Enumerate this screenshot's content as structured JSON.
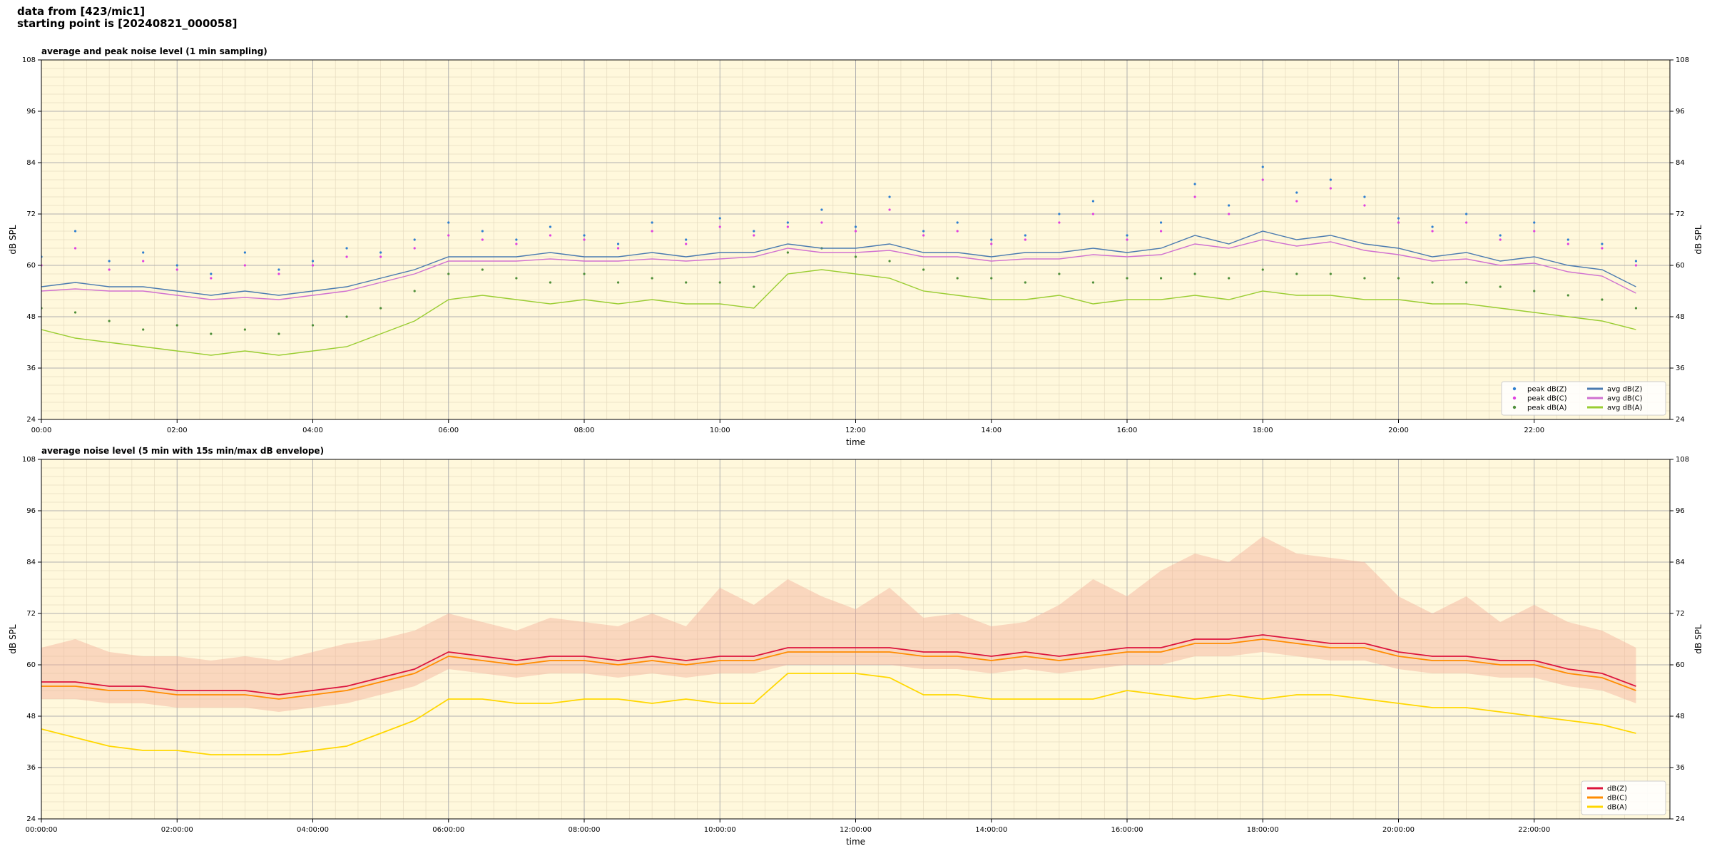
{
  "header": {
    "line1": "data from [423/mic1]",
    "line2": "starting point is [20240821_000058]"
  },
  "chart_data": [
    {
      "type": "line",
      "title": "average and peak noise level (1 min sampling)",
      "xlabel": "time",
      "ylabel": "dB SPL",
      "xlim": [
        0,
        24
      ],
      "ylim": [
        24,
        108
      ],
      "grid": true,
      "legend": "lower right",
      "background": "#fff8dc",
      "xticks": [
        {
          "value": 0,
          "label": "00:00"
        },
        {
          "value": 2,
          "label": "02:00"
        },
        {
          "value": 4,
          "label": "04:00"
        },
        {
          "value": 6,
          "label": "06:00"
        },
        {
          "value": 8,
          "label": "08:00"
        },
        {
          "value": 10,
          "label": "10:00"
        },
        {
          "value": 12,
          "label": "12:00"
        },
        {
          "value": 14,
          "label": "14:00"
        },
        {
          "value": 16,
          "label": "16:00"
        },
        {
          "value": 18,
          "label": "18:00"
        },
        {
          "value": 20,
          "label": "20:00"
        },
        {
          "value": 22,
          "label": "22:00"
        }
      ],
      "yticks": [
        24,
        36,
        48,
        60,
        72,
        84,
        96,
        108
      ],
      "x": [
        0,
        0.5,
        1,
        1.5,
        2,
        2.5,
        3,
        3.5,
        4,
        4.5,
        5,
        5.5,
        6,
        6.5,
        7,
        7.5,
        8,
        8.5,
        9,
        9.5,
        10,
        10.5,
        11,
        11.5,
        12,
        12.5,
        13,
        13.5,
        14,
        14.5,
        15,
        15.5,
        16,
        16.5,
        17,
        17.5,
        18,
        18.5,
        19,
        19.5,
        20,
        20.5,
        21,
        21.5,
        22,
        22.5,
        23,
        23.5
      ],
      "series": [
        {
          "name": "peak dB(Z)",
          "kind": "scatter",
          "color": "#2f7fd0",
          "values": [
            62,
            68,
            61,
            63,
            60,
            58,
            63,
            59,
            61,
            64,
            63,
            66,
            70,
            68,
            66,
            69,
            67,
            65,
            70,
            66,
            71,
            68,
            70,
            73,
            69,
            76,
            68,
            70,
            66,
            67,
            72,
            75,
            67,
            70,
            79,
            74,
            83,
            77,
            80,
            76,
            71,
            69,
            72,
            67,
            70,
            66,
            65,
            61
          ]
        },
        {
          "name": "peak dB(C)",
          "kind": "scatter",
          "color": "#e040e0",
          "values": [
            60,
            64,
            59,
            61,
            59,
            57,
            60,
            58,
            60,
            62,
            62,
            64,
            67,
            66,
            65,
            67,
            66,
            64,
            68,
            65,
            69,
            67,
            69,
            70,
            68,
            73,
            67,
            68,
            65,
            66,
            70,
            72,
            66,
            68,
            76,
            72,
            80,
            75,
            78,
            74,
            70,
            68,
            70,
            66,
            68,
            65,
            64,
            60
          ]
        },
        {
          "name": "peak dB(A)",
          "kind": "scatter",
          "color": "#4f8f3a",
          "values": [
            50,
            49,
            47,
            45,
            46,
            44,
            45,
            44,
            46,
            48,
            50,
            54,
            58,
            59,
            57,
            56,
            58,
            56,
            57,
            56,
            56,
            55,
            63,
            64,
            62,
            61,
            59,
            57,
            57,
            56,
            58,
            56,
            57,
            57,
            58,
            57,
            59,
            58,
            58,
            57,
            57,
            56,
            56,
            55,
            54,
            53,
            52,
            50
          ]
        },
        {
          "name": "avg dB(Z)",
          "kind": "line",
          "color": "#4a7ab0",
          "values": [
            55,
            56,
            55,
            55,
            54,
            53,
            54,
            53,
            54,
            55,
            57,
            59,
            62,
            62,
            62,
            63,
            62,
            62,
            63,
            62,
            63,
            63,
            65,
            64,
            64,
            65,
            63,
            63,
            62,
            63,
            63,
            64,
            63,
            64,
            67,
            65,
            68,
            66,
            67,
            65,
            64,
            62,
            63,
            61,
            62,
            60,
            59,
            55
          ]
        },
        {
          "name": "avg dB(C)",
          "kind": "line",
          "color": "#d070d0",
          "values": [
            54,
            54.5,
            54,
            54,
            53,
            52,
            52.5,
            52,
            53,
            54,
            56,
            58,
            61,
            61,
            61,
            61.5,
            61,
            61,
            61.5,
            61,
            61.5,
            62,
            64,
            63,
            63,
            63.5,
            62,
            62,
            61,
            61.5,
            61.5,
            62.5,
            62,
            62.5,
            65,
            64,
            66,
            64.5,
            65.5,
            63.5,
            62.5,
            61,
            61.5,
            60,
            60.5,
            58.5,
            57.5,
            53.5
          ]
        },
        {
          "name": "avg dB(A)",
          "kind": "line",
          "color": "#9acd32",
          "values": [
            45,
            43,
            42,
            41,
            40,
            39,
            40,
            39,
            40,
            41,
            44,
            47,
            52,
            53,
            52,
            51,
            52,
            51,
            52,
            51,
            51,
            50,
            58,
            59,
            58,
            57,
            54,
            53,
            52,
            52,
            53,
            51,
            52,
            52,
            53,
            52,
            54,
            53,
            53,
            52,
            52,
            51,
            51,
            50,
            49,
            48,
            47,
            45
          ]
        }
      ]
    },
    {
      "type": "line",
      "title": "average noise level (5 min with 15s min/max dB envelope)",
      "xlabel": "time",
      "ylabel": "dB SPL",
      "xlim": [
        0,
        24
      ],
      "ylim": [
        24,
        108
      ],
      "grid": true,
      "legend": "lower right",
      "background": "#fff8dc",
      "xticks": [
        {
          "value": 0,
          "label": "00:00:00"
        },
        {
          "value": 2,
          "label": "02:00:00"
        },
        {
          "value": 4,
          "label": "04:00:00"
        },
        {
          "value": 6,
          "label": "06:00:00"
        },
        {
          "value": 8,
          "label": "08:00:00"
        },
        {
          "value": 10,
          "label": "10:00:00"
        },
        {
          "value": 12,
          "label": "12:00:00"
        },
        {
          "value": 14,
          "label": "14:00:00"
        },
        {
          "value": 16,
          "label": "16:00:00"
        },
        {
          "value": 18,
          "label": "18:00:00"
        },
        {
          "value": 20,
          "label": "20:00:00"
        },
        {
          "value": 22,
          "label": "22:00:00"
        }
      ],
      "yticks": [
        24,
        36,
        48,
        60,
        72,
        84,
        96,
        108
      ],
      "x": [
        0,
        0.5,
        1,
        1.5,
        2,
        2.5,
        3,
        3.5,
        4,
        4.5,
        5,
        5.5,
        6,
        6.5,
        7,
        7.5,
        8,
        8.5,
        9,
        9.5,
        10,
        10.5,
        11,
        11.5,
        12,
        12.5,
        13,
        13.5,
        14,
        14.5,
        15,
        15.5,
        16,
        16.5,
        17,
        17.5,
        18,
        18.5,
        19,
        19.5,
        20,
        20.5,
        21,
        21.5,
        22,
        22.5,
        23,
        23.5
      ],
      "envelope": {
        "color": "#f4b09a",
        "low": [
          52,
          52,
          51,
          51,
          50,
          50,
          50,
          49,
          50,
          51,
          53,
          55,
          59,
          58,
          57,
          58,
          58,
          57,
          58,
          57,
          58,
          58,
          60,
          60,
          60,
          60,
          59,
          59,
          58,
          59,
          58,
          59,
          60,
          60,
          62,
          62,
          63,
          62,
          61,
          61,
          59,
          58,
          58,
          57,
          57,
          55,
          54,
          51
        ],
        "high": [
          64,
          66,
          63,
          62,
          62,
          61,
          62,
          61,
          63,
          65,
          66,
          68,
          72,
          70,
          68,
          71,
          70,
          69,
          72,
          69,
          78,
          74,
          80,
          76,
          73,
          78,
          71,
          72,
          69,
          70,
          74,
          80,
          76,
          82,
          86,
          84,
          90,
          86,
          85,
          84,
          76,
          72,
          76,
          70,
          74,
          70,
          68,
          64
        ]
      },
      "series": [
        {
          "name": "dB(Z)",
          "kind": "line",
          "color": "#dc143c",
          "values": [
            56,
            56,
            55,
            55,
            54,
            54,
            54,
            53,
            54,
            55,
            57,
            59,
            63,
            62,
            61,
            62,
            62,
            61,
            62,
            61,
            62,
            62,
            64,
            64,
            64,
            64,
            63,
            63,
            62,
            63,
            62,
            63,
            64,
            64,
            66,
            66,
            67,
            66,
            65,
            65,
            63,
            62,
            62,
            61,
            61,
            59,
            58,
            55
          ]
        },
        {
          "name": "dB(C)",
          "kind": "line",
          "color": "#ff8c00",
          "values": [
            55,
            55,
            54,
            54,
            53,
            53,
            53,
            52,
            53,
            54,
            56,
            58,
            62,
            61,
            60,
            61,
            61,
            60,
            61,
            60,
            61,
            61,
            63,
            63,
            63,
            63,
            62,
            62,
            61,
            62,
            61,
            62,
            63,
            63,
            65,
            65,
            66,
            65,
            64,
            64,
            62,
            61,
            61,
            60,
            60,
            58,
            57,
            54
          ]
        },
        {
          "name": "dB(A)",
          "kind": "line",
          "color": "#ffd700",
          "values": [
            45,
            43,
            41,
            40,
            40,
            39,
            39,
            39,
            40,
            41,
            44,
            47,
            52,
            52,
            51,
            51,
            52,
            52,
            51,
            52,
            51,
            51,
            58,
            58,
            58,
            57,
            53,
            53,
            52,
            52,
            52,
            52,
            54,
            53,
            52,
            53,
            52,
            53,
            53,
            52,
            51,
            50,
            50,
            49,
            48,
            47,
            46,
            44
          ]
        }
      ]
    }
  ]
}
